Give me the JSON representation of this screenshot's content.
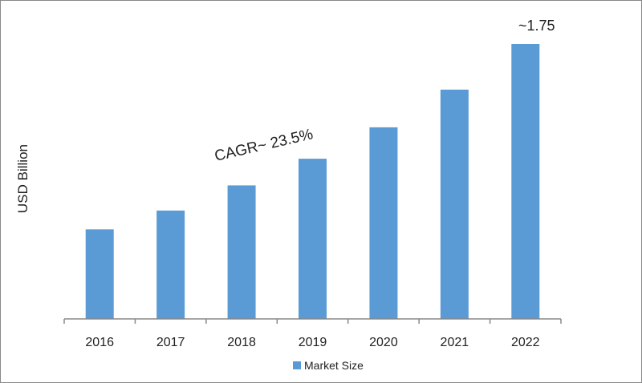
{
  "chart_data": {
    "type": "bar",
    "title": "",
    "xlabel": "",
    "ylabel": "USD Billion",
    "categories": [
      "2016",
      "2017",
      "2018",
      "2019",
      "2020",
      "2021",
      "2022"
    ],
    "series": [
      {
        "name": "Market Size",
        "values": [
          0.57,
          0.69,
          0.85,
          1.02,
          1.22,
          1.46,
          1.75
        ]
      }
    ],
    "ylim": [
      0,
      1.75
    ],
    "grid": false,
    "legend": "bottom",
    "bar_color": "#5b9bd5",
    "annotations": {
      "cagr": "CAGR~ 23.5%",
      "last_value": "~1.75"
    }
  }
}
